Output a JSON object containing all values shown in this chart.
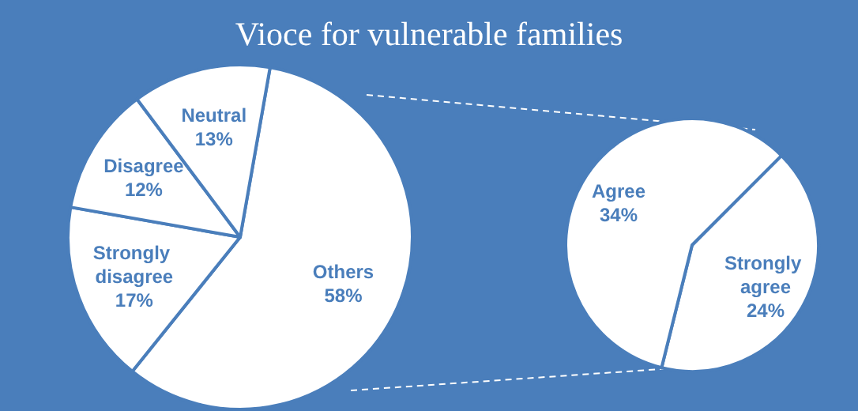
{
  "chart_data": [
    {
      "type": "pie",
      "title": "Vioce for vulnerable families",
      "categories": [
        "Others",
        "Strongly disagree",
        "Disagree",
        "Neutral"
      ],
      "values": [
        58,
        17,
        12,
        13
      ],
      "colors": [
        "#ffffff",
        "#ffffff",
        "#ffffff",
        "#ffffff"
      ],
      "value_labels": [
        "58%",
        "17%",
        "12%",
        "13%"
      ]
    },
    {
      "type": "pie",
      "categories": [
        "Strongly agree",
        "Agree"
      ],
      "values": [
        24,
        34
      ],
      "colors": [
        "#ffffff",
        "#ffffff"
      ],
      "value_labels": [
        "24%",
        "34%"
      ]
    }
  ]
}
